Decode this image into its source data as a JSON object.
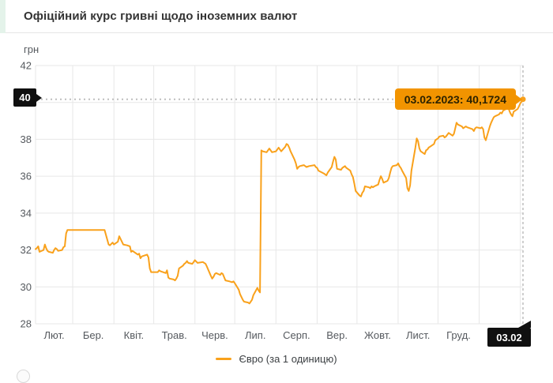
{
  "header": {
    "title": "Офіційний курс гривні щодо іноземних валют"
  },
  "colors": {
    "line": "#F9A11B",
    "tooltip_bg": "#F29400",
    "tooltip_text": "#2D2300",
    "badge_bg": "#101010",
    "badge_text": "#FFFFFF",
    "grid": "#E7E7E7",
    "axis_text": "#55595E",
    "accent_strip": "#E4F3EA"
  },
  "legend": {
    "label": "Євро (за 1 одиницю)"
  },
  "chart_data": {
    "type": "line",
    "title": "Офіційний курс гривні щодо іноземних валют",
    "ylabel": "грн",
    "xlabel": "",
    "ylim": [
      28,
      42
    ],
    "y_ticks": [
      42,
      40,
      38,
      36,
      34,
      32,
      30,
      28
    ],
    "x_tick_labels": [
      "Лют.",
      "Бер.",
      "Квіт.",
      "Трав.",
      "Черв.",
      "Лип.",
      "Серп.",
      "Вер.",
      "Жовт.",
      "Лист.",
      "Груд."
    ],
    "x_range": [
      "2022-02-01",
      "2023-02-03"
    ],
    "grid": true,
    "legend_position": "bottom-center",
    "tooltip": {
      "label": "03.02.2023: 40,1724",
      "date": "03.02.2023",
      "value": "40,1724"
    },
    "y_marker": {
      "label": "40",
      "value": 40.1724
    },
    "x_marker": {
      "label": "03.02",
      "date": "2023-02-03"
    },
    "series": [
      {
        "name": "Євро (за 1 одиницю)",
        "points": [
          [
            "2022-02-01",
            32.05
          ],
          [
            "2022-02-02",
            32.1
          ],
          [
            "2022-02-03",
            32.2
          ],
          [
            "2022-02-04",
            31.9
          ],
          [
            "2022-02-07",
            32.0
          ],
          [
            "2022-02-08",
            32.3
          ],
          [
            "2022-02-09",
            32.1
          ],
          [
            "2022-02-10",
            31.95
          ],
          [
            "2022-02-11",
            31.9
          ],
          [
            "2022-02-14",
            31.85
          ],
          [
            "2022-02-15",
            32.0
          ],
          [
            "2022-02-16",
            32.1
          ],
          [
            "2022-02-17",
            32.05
          ],
          [
            "2022-02-18",
            31.95
          ],
          [
            "2022-02-21",
            32.0
          ],
          [
            "2022-02-22",
            32.15
          ],
          [
            "2022-02-23",
            32.2
          ],
          [
            "2022-02-24",
            32.9
          ],
          [
            "2022-02-25",
            33.08
          ],
          [
            "2022-03-25",
            33.08
          ],
          [
            "2022-03-28",
            32.3
          ],
          [
            "2022-03-29",
            32.25
          ],
          [
            "2022-03-31",
            32.4
          ],
          [
            "2022-04-01",
            32.3
          ],
          [
            "2022-04-04",
            32.45
          ],
          [
            "2022-04-05",
            32.75
          ],
          [
            "2022-04-06",
            32.6
          ],
          [
            "2022-04-07",
            32.45
          ],
          [
            "2022-04-08",
            32.3
          ],
          [
            "2022-04-11",
            32.25
          ],
          [
            "2022-04-13",
            32.2
          ],
          [
            "2022-04-14",
            31.9
          ],
          [
            "2022-04-15",
            31.95
          ],
          [
            "2022-04-19",
            31.75
          ],
          [
            "2022-04-20",
            31.8
          ],
          [
            "2022-04-21",
            31.55
          ],
          [
            "2022-04-22",
            31.65
          ],
          [
            "2022-04-26",
            31.75
          ],
          [
            "2022-04-27",
            31.6
          ],
          [
            "2022-04-28",
            31.0
          ],
          [
            "2022-04-29",
            30.8
          ],
          [
            "2022-05-04",
            30.8
          ],
          [
            "2022-05-05",
            30.9
          ],
          [
            "2022-05-06",
            30.85
          ],
          [
            "2022-05-10",
            30.75
          ],
          [
            "2022-05-11",
            30.9
          ],
          [
            "2022-05-12",
            30.5
          ],
          [
            "2022-05-13",
            30.45
          ],
          [
            "2022-05-16",
            30.4
          ],
          [
            "2022-05-17",
            30.35
          ],
          [
            "2022-05-18",
            30.45
          ],
          [
            "2022-05-19",
            30.6
          ],
          [
            "2022-05-20",
            31.0
          ],
          [
            "2022-05-23",
            31.15
          ],
          [
            "2022-05-24",
            31.25
          ],
          [
            "2022-05-25",
            31.3
          ],
          [
            "2022-05-26",
            31.4
          ],
          [
            "2022-05-27",
            31.3
          ],
          [
            "2022-05-30",
            31.25
          ],
          [
            "2022-05-31",
            31.35
          ],
          [
            "2022-06-01",
            31.45
          ],
          [
            "2022-06-03",
            31.3
          ],
          [
            "2022-06-07",
            31.35
          ],
          [
            "2022-06-09",
            31.25
          ],
          [
            "2022-06-10",
            31.1
          ],
          [
            "2022-06-13",
            30.6
          ],
          [
            "2022-06-14",
            30.45
          ],
          [
            "2022-06-15",
            30.55
          ],
          [
            "2022-06-16",
            30.7
          ],
          [
            "2022-06-17",
            30.75
          ],
          [
            "2022-06-20",
            30.65
          ],
          [
            "2022-06-21",
            30.75
          ],
          [
            "2022-06-22",
            30.7
          ],
          [
            "2022-06-24",
            30.35
          ],
          [
            "2022-06-27",
            30.3
          ],
          [
            "2022-06-29",
            30.25
          ],
          [
            "2022-06-30",
            30.3
          ],
          [
            "2022-07-01",
            30.2
          ],
          [
            "2022-07-04",
            29.85
          ],
          [
            "2022-07-05",
            29.6
          ],
          [
            "2022-07-06",
            29.45
          ],
          [
            "2022-07-07",
            29.3
          ],
          [
            "2022-07-08",
            29.2
          ],
          [
            "2022-07-11",
            29.15
          ],
          [
            "2022-07-12",
            29.1
          ],
          [
            "2022-07-13",
            29.2
          ],
          [
            "2022-07-14",
            29.3
          ],
          [
            "2022-07-15",
            29.55
          ],
          [
            "2022-07-18",
            29.95
          ],
          [
            "2022-07-19",
            29.8
          ],
          [
            "2022-07-20",
            29.7
          ],
          [
            "2022-07-21",
            37.4
          ],
          [
            "2022-07-22",
            37.35
          ],
          [
            "2022-07-25",
            37.3
          ],
          [
            "2022-07-26",
            37.4
          ],
          [
            "2022-07-27",
            37.5
          ],
          [
            "2022-07-28",
            37.4
          ],
          [
            "2022-07-29",
            37.3
          ],
          [
            "2022-08-01",
            37.35
          ],
          [
            "2022-08-02",
            37.45
          ],
          [
            "2022-08-03",
            37.55
          ],
          [
            "2022-08-04",
            37.45
          ],
          [
            "2022-08-05",
            37.35
          ],
          [
            "2022-08-08",
            37.6
          ],
          [
            "2022-08-09",
            37.75
          ],
          [
            "2022-08-10",
            37.7
          ],
          [
            "2022-08-11",
            37.55
          ],
          [
            "2022-08-12",
            37.35
          ],
          [
            "2022-08-15",
            36.9
          ],
          [
            "2022-08-16",
            36.7
          ],
          [
            "2022-08-17",
            36.4
          ],
          [
            "2022-08-18",
            36.5
          ],
          [
            "2022-08-19",
            36.55
          ],
          [
            "2022-08-22",
            36.6
          ],
          [
            "2022-08-23",
            36.55
          ],
          [
            "2022-08-24",
            36.5
          ],
          [
            "2022-08-26",
            36.55
          ],
          [
            "2022-08-30",
            36.6
          ],
          [
            "2022-08-31",
            36.5
          ],
          [
            "2022-09-01",
            36.45
          ],
          [
            "2022-09-02",
            36.3
          ],
          [
            "2022-09-06",
            36.15
          ],
          [
            "2022-09-08",
            36.05
          ],
          [
            "2022-09-09",
            36.2
          ],
          [
            "2022-09-12",
            36.5
          ],
          [
            "2022-09-13",
            36.8
          ],
          [
            "2022-09-14",
            37.05
          ],
          [
            "2022-09-15",
            36.9
          ],
          [
            "2022-09-16",
            36.4
          ],
          [
            "2022-09-19",
            36.35
          ],
          [
            "2022-09-20",
            36.45
          ],
          [
            "2022-09-21",
            36.5
          ],
          [
            "2022-09-22",
            36.55
          ],
          [
            "2022-09-23",
            36.45
          ],
          [
            "2022-09-26",
            36.3
          ],
          [
            "2022-09-27",
            36.1
          ],
          [
            "2022-09-28",
            35.95
          ],
          [
            "2022-09-29",
            35.6
          ],
          [
            "2022-09-30",
            35.2
          ],
          [
            "2022-10-03",
            34.95
          ],
          [
            "2022-10-04",
            34.9
          ],
          [
            "2022-10-05",
            35.1
          ],
          [
            "2022-10-06",
            35.2
          ],
          [
            "2022-10-07",
            35.45
          ],
          [
            "2022-10-10",
            35.4
          ],
          [
            "2022-10-11",
            35.35
          ],
          [
            "2022-10-12",
            35.45
          ],
          [
            "2022-10-13",
            35.4
          ],
          [
            "2022-10-14",
            35.45
          ],
          [
            "2022-10-17",
            35.55
          ],
          [
            "2022-10-18",
            35.8
          ],
          [
            "2022-10-19",
            36.0
          ],
          [
            "2022-10-20",
            35.85
          ],
          [
            "2022-10-21",
            35.65
          ],
          [
            "2022-10-24",
            35.75
          ],
          [
            "2022-10-25",
            35.9
          ],
          [
            "2022-10-26",
            36.2
          ],
          [
            "2022-10-27",
            36.45
          ],
          [
            "2022-10-28",
            36.55
          ],
          [
            "2022-10-31",
            36.6
          ],
          [
            "2022-11-01",
            36.7
          ],
          [
            "2022-11-02",
            36.55
          ],
          [
            "2022-11-03",
            36.45
          ],
          [
            "2022-11-04",
            36.3
          ],
          [
            "2022-11-07",
            35.9
          ],
          [
            "2022-11-08",
            35.35
          ],
          [
            "2022-11-09",
            35.2
          ],
          [
            "2022-11-10",
            35.5
          ],
          [
            "2022-11-11",
            36.3
          ],
          [
            "2022-11-14",
            37.55
          ],
          [
            "2022-11-15",
            38.05
          ],
          [
            "2022-11-16",
            37.9
          ],
          [
            "2022-11-17",
            37.5
          ],
          [
            "2022-11-18",
            37.35
          ],
          [
            "2022-11-21",
            37.2
          ],
          [
            "2022-11-22",
            37.4
          ],
          [
            "2022-11-23",
            37.45
          ],
          [
            "2022-11-24",
            37.55
          ],
          [
            "2022-11-25",
            37.6
          ],
          [
            "2022-11-28",
            37.75
          ],
          [
            "2022-11-29",
            37.95
          ],
          [
            "2022-11-30",
            38.0
          ],
          [
            "2022-12-01",
            38.05
          ],
          [
            "2022-12-02",
            38.15
          ],
          [
            "2022-12-05",
            38.2
          ],
          [
            "2022-12-06",
            38.1
          ],
          [
            "2022-12-07",
            38.15
          ],
          [
            "2022-12-08",
            38.25
          ],
          [
            "2022-12-09",
            38.35
          ],
          [
            "2022-12-12",
            38.2
          ],
          [
            "2022-12-13",
            38.3
          ],
          [
            "2022-12-14",
            38.6
          ],
          [
            "2022-12-15",
            38.9
          ],
          [
            "2022-12-16",
            38.8
          ],
          [
            "2022-12-19",
            38.7
          ],
          [
            "2022-12-20",
            38.6
          ],
          [
            "2022-12-21",
            38.65
          ],
          [
            "2022-12-22",
            38.7
          ],
          [
            "2022-12-23",
            38.65
          ],
          [
            "2022-12-27",
            38.55
          ],
          [
            "2022-12-28",
            38.45
          ],
          [
            "2022-12-29",
            38.6
          ],
          [
            "2022-12-30",
            38.65
          ],
          [
            "2023-01-02",
            38.6
          ],
          [
            "2023-01-03",
            38.65
          ],
          [
            "2023-01-04",
            38.55
          ],
          [
            "2023-01-05",
            38.1
          ],
          [
            "2023-01-06",
            37.95
          ],
          [
            "2023-01-09",
            38.7
          ],
          [
            "2023-01-10",
            38.9
          ],
          [
            "2023-01-11",
            39.05
          ],
          [
            "2023-01-12",
            39.2
          ],
          [
            "2023-01-13",
            39.25
          ],
          [
            "2023-01-16",
            39.35
          ],
          [
            "2023-01-17",
            39.45
          ],
          [
            "2023-01-18",
            39.4
          ],
          [
            "2023-01-19",
            39.55
          ],
          [
            "2023-01-20",
            39.6
          ],
          [
            "2023-01-23",
            39.7
          ],
          [
            "2023-01-24",
            39.5
          ],
          [
            "2023-01-25",
            39.35
          ],
          [
            "2023-01-26",
            39.25
          ],
          [
            "2023-01-27",
            39.5
          ],
          [
            "2023-01-30",
            39.65
          ],
          [
            "2023-01-31",
            39.8
          ],
          [
            "2023-02-01",
            39.95
          ],
          [
            "2023-02-02",
            40.05
          ],
          [
            "2023-02-03",
            40.1724
          ]
        ]
      }
    ]
  }
}
